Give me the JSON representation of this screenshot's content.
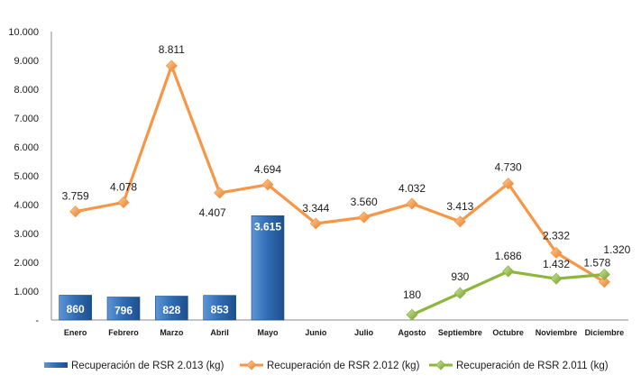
{
  "chart_data": {
    "type": "bar",
    "categories": [
      "Enero",
      "Febrero",
      "Marzo",
      "Abril",
      "Mayo",
      "Junio",
      "Julio",
      "Agosto",
      "Septiembre",
      "Octubre",
      "Noviembre",
      "Diciembre"
    ],
    "y_ticks": [
      "-",
      "1.000",
      "2.000",
      "3.000",
      "4.000",
      "5.000",
      "6.000",
      "7.000",
      "8.000",
      "9.000",
      "10.000"
    ],
    "ylim": [
      0,
      10000
    ],
    "grid": false,
    "legend_position": "bottom",
    "series": [
      {
        "name": "Recuperación de RSR 2.013 (kg)",
        "type": "bar",
        "color": "#2E6DB4",
        "values": [
          860,
          796,
          828,
          853,
          3615,
          null,
          null,
          null,
          null,
          null,
          null,
          null
        ],
        "labels": [
          "860",
          "796",
          "828",
          "853",
          "3.615",
          "",
          "",
          "",
          "",
          "",
          "",
          ""
        ]
      },
      {
        "name": "Recuperación de RSR 2.012 (kg)",
        "type": "line",
        "color": "#F79646",
        "values": [
          3759,
          4078,
          8811,
          4407,
          4694,
          3344,
          3560,
          4032,
          3413,
          4730,
          2332,
          1320
        ],
        "labels": [
          "3.759",
          "4.078",
          "8.811",
          "4.407",
          "4.694",
          "3.344",
          "3.560",
          "4.032",
          "3.413",
          "4.730",
          "2.332",
          "1.320"
        ]
      },
      {
        "name": "Recuperación de RSR 2.011 (kg)",
        "type": "line",
        "color": "#8DB63C",
        "values": [
          null,
          null,
          null,
          null,
          null,
          null,
          null,
          180,
          930,
          1686,
          1432,
          1578
        ],
        "labels": [
          "",
          "",
          "",
          "",
          "",
          "",
          "",
          "180",
          "930",
          "1.686",
          "1.432",
          "1.578"
        ]
      }
    ]
  }
}
